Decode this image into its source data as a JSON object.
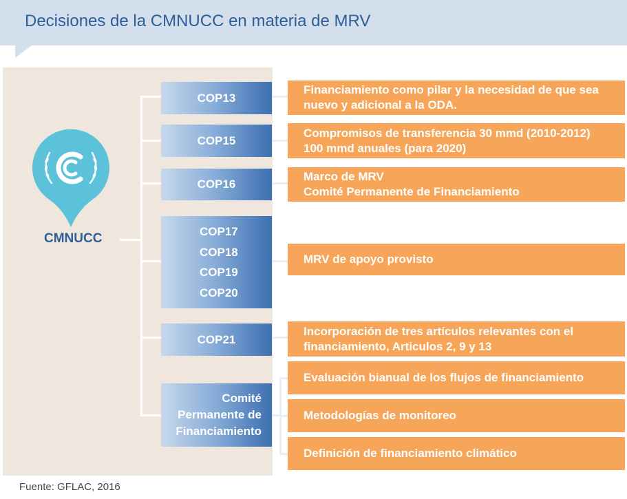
{
  "header": {
    "title": "Decisiones de la CMNUCC en materia de MRV"
  },
  "org": {
    "label": "CMNUCC"
  },
  "decisions": [
    {
      "cop_lines": [
        "COP13"
      ],
      "text_lines": [
        "Financiamiento como pilar y la necesidad de que sea",
        "nuevo y adicional a la ODA."
      ]
    },
    {
      "cop_lines": [
        "COP15"
      ],
      "text_lines": [
        "Compromisos de transferencia 30 mmd (2010-2012)",
        "100 mmd anuales (para 2020)"
      ]
    },
    {
      "cop_lines": [
        "COP16"
      ],
      "text_lines": [
        "Marco de MRV",
        "Comité Permanente de Financiamiento"
      ]
    },
    {
      "cop_lines": [
        "COP17",
        "COP18",
        "COP19",
        "COP20"
      ],
      "text_lines": [
        "MRV de apoyo provisto"
      ]
    },
    {
      "cop_lines": [
        "COP21"
      ],
      "text_lines": [
        "Incorporación de tres artículos relevantes con el",
        "financiamiento, Articulos 2, 9 y 13"
      ]
    },
    {
      "cop_lines": [
        "Comité",
        "Permanente de",
        "Financiamiento"
      ],
      "sub_items": [
        "Evaluación bianual de los flujos de financiamiento",
        "Metodologías de monitoreo",
        "Definición de financiamiento climático"
      ]
    }
  ],
  "source": "Fuente: GFLAC, 2016",
  "colors": {
    "banner": "#d3dfec",
    "title": "#2e5d97",
    "panel": "#efe7dd",
    "cop_gradient_dark": "#3d6fb1",
    "orange_box": "#f6a559",
    "emblem": "#5cc2d9"
  }
}
